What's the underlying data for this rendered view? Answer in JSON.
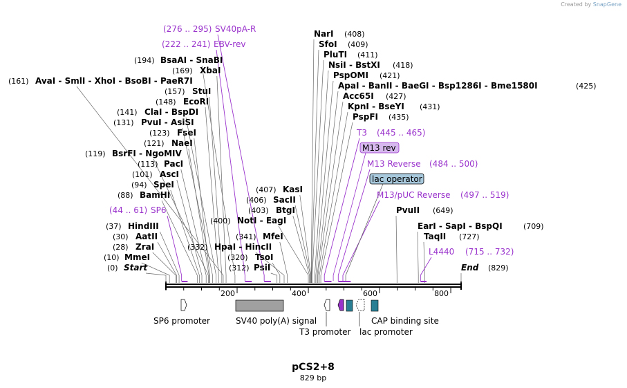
{
  "watermark": {
    "created_by": "Created by",
    "brand": "SnapGene"
  },
  "plasmid": {
    "name": "pCS2+8",
    "length_label": "829 bp",
    "length": 829
  },
  "scale_ticks": [
    "200",
    "400",
    "600",
    "800"
  ],
  "enzymes": [
    {
      "name": "Start",
      "pos": 0,
      "pos_label": "(0)",
      "italic": true
    },
    {
      "name": "MmeI",
      "pos": 10,
      "pos_label": "(10)"
    },
    {
      "name": "ZraI",
      "pos": 28,
      "pos_label": "(28)"
    },
    {
      "name": "AatII",
      "pos": 30,
      "pos_label": "(30)"
    },
    {
      "name": "HindIII",
      "pos": 37,
      "pos_label": "(37)"
    },
    {
      "name": "BamHI",
      "pos": 88,
      "pos_label": "(88)"
    },
    {
      "name": "SpeI",
      "pos": 94,
      "pos_label": "(94)"
    },
    {
      "name": "AscI",
      "pos": 101,
      "pos_label": "(101)"
    },
    {
      "name": "PacI",
      "pos": 113,
      "pos_label": "(113)"
    },
    {
      "name": "BsrFI - NgoMIV",
      "pos": 119,
      "pos_label": "(119)"
    },
    {
      "name": "NaeI",
      "pos": 121,
      "pos_label": "(121)"
    },
    {
      "name": "FseI",
      "pos": 123,
      "pos_label": "(123)"
    },
    {
      "name": "PvuI - AsiSI",
      "pos": 131,
      "pos_label": "(131)"
    },
    {
      "name": "ClaI - BspDI",
      "pos": 141,
      "pos_label": "(141)"
    },
    {
      "name": "EcoRI",
      "pos": 148,
      "pos_label": "(148)"
    },
    {
      "name": "StuI",
      "pos": 157,
      "pos_label": "(157)"
    },
    {
      "name": "AvaI - SmlI - XhoI - BsoBI - PaeR7I",
      "pos": 161,
      "pos_label": "(161)"
    },
    {
      "name": "XbaI",
      "pos": 169,
      "pos_label": "(169)"
    },
    {
      "name": "BsaAI - SnaBI",
      "pos": 194,
      "pos_label": "(194)"
    },
    {
      "name": "PsiI",
      "pos": 312,
      "pos_label": "(312)"
    },
    {
      "name": "TsoI",
      "pos": 320,
      "pos_label": "(320)"
    },
    {
      "name": "MfeI",
      "pos": 341,
      "pos_label": "(341)"
    },
    {
      "name": "HpaI - HincII",
      "pos": 332,
      "pos_label": "(332)"
    },
    {
      "name": "NotI - EagI",
      "pos": 400,
      "pos_label": "(400)"
    },
    {
      "name": "BtgI",
      "pos": 403,
      "pos_label": "(403)"
    },
    {
      "name": "SacII",
      "pos": 406,
      "pos_label": "(406)"
    },
    {
      "name": "KasI",
      "pos": 407,
      "pos_label": "(407)"
    },
    {
      "name": "NarI",
      "pos": 408,
      "pos_label": "(408)"
    },
    {
      "name": "SfoI",
      "pos": 409,
      "pos_label": "(409)"
    },
    {
      "name": "PluTI",
      "pos": 411,
      "pos_label": "(411)"
    },
    {
      "name": "NsiI - BstXI",
      "pos": 418,
      "pos_label": "(418)"
    },
    {
      "name": "PspOMI",
      "pos": 421,
      "pos_label": "(421)"
    },
    {
      "name": "ApaI - BanII - BaeGI - Bsp1286I - Bme1580I",
      "pos": 425,
      "pos_label": "(425)"
    },
    {
      "name": "Acc65I",
      "pos": 427,
      "pos_label": "(427)"
    },
    {
      "name": "KpnI - BseYI",
      "pos": 431,
      "pos_label": "(431)"
    },
    {
      "name": "PspFI",
      "pos": 435,
      "pos_label": "(435)"
    },
    {
      "name": "PvuII",
      "pos": 649,
      "pos_label": "(649)"
    },
    {
      "name": "TaqII",
      "pos": 727,
      "pos_label": "(727)"
    },
    {
      "name": "EarI - SapI - BspQI",
      "pos": 709,
      "pos_label": "(709)"
    },
    {
      "name": "End",
      "pos": 829,
      "pos_label": "(829)",
      "italic": true
    }
  ],
  "primers": [
    {
      "name": "SP6",
      "range": "(44 .. 61)",
      "start": 44,
      "end": 61
    },
    {
      "name": "EBV-rev",
      "range": "(222 .. 241)",
      "start": 222,
      "end": 241
    },
    {
      "name": "SV40pA-R",
      "range": "(276 .. 295)",
      "start": 276,
      "end": 295
    },
    {
      "name": "T3",
      "range": "(445 .. 465)",
      "start": 445,
      "end": 465
    },
    {
      "name": "M13 rev",
      "boxed": true,
      "pos": 470
    },
    {
      "name": "M13 Reverse",
      "range": "(484 .. 500)",
      "start": 484,
      "end": 500
    },
    {
      "name": "lac operator",
      "boxed": true,
      "pos": 505
    },
    {
      "name": "M13/pUC Reverse",
      "range": "(497 .. 519)",
      "start": 497,
      "end": 519
    },
    {
      "name": "L4440",
      "range": "(715 .. 732)",
      "start": 715,
      "end": 732
    }
  ],
  "features": [
    {
      "name": "SP6 promoter"
    },
    {
      "name": "SV40 poly(A) signal"
    },
    {
      "name": "T3 promoter"
    },
    {
      "name": "lac promoter"
    },
    {
      "name": "CAP binding site"
    }
  ],
  "colors": {
    "primer": "#9a33cc",
    "feature_gray": "#a0a0a0",
    "feature_teal": "#2b7f94",
    "lac_operator_fill": "#a8c8dc",
    "m13rev_fill": "#d7b8ee"
  }
}
